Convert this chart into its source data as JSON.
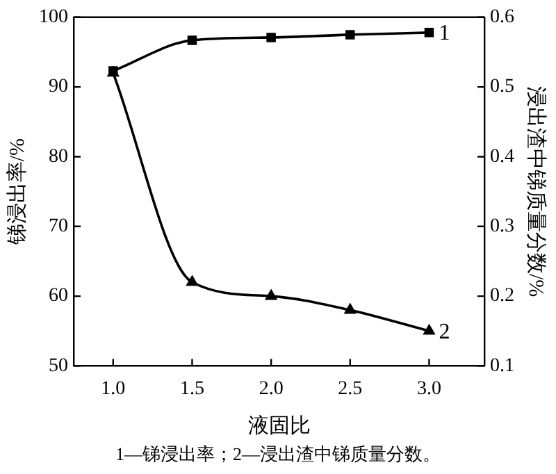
{
  "chart_data": {
    "type": "line",
    "xlabel": "液固比",
    "ylabel": "锑浸出率/%",
    "y2label": "浸出渣中锑质量分数/%",
    "x": [
      1.0,
      1.5,
      2.0,
      2.5,
      3.0
    ],
    "series": [
      {
        "name": "1",
        "color": "#000000",
        "marker": "square",
        "values": [
          92.3,
          96.7,
          97.1,
          97.5,
          97.8
        ]
      },
      {
        "name": "2",
        "color": "#000000",
        "marker": "triangle",
        "axis": "y2",
        "values": [
          0.52,
          0.22,
          0.2,
          0.18,
          0.15
        ]
      }
    ],
    "xlim": [
      0.75,
      3.35
    ],
    "xticks": [
      {
        "value": 1,
        "label": "1.0"
      },
      1.5,
      {
        "value": 2,
        "label": "2.0"
      },
      2.5,
      {
        "value": 3,
        "label": "3.0"
      }
    ],
    "ylim": [
      50,
      100
    ],
    "yticks": [
      50,
      60,
      70,
      80,
      90,
      100
    ],
    "y2lim": [
      0.1,
      0.6
    ],
    "y2ticks": [
      0.1,
      0.2,
      0.3,
      0.4,
      0.5,
      0.6
    ],
    "grid": false,
    "legend": false,
    "line_style": "solid",
    "annotations": [
      "1—锑浸出率；2—浸出渣中锑质量分数。"
    ]
  }
}
